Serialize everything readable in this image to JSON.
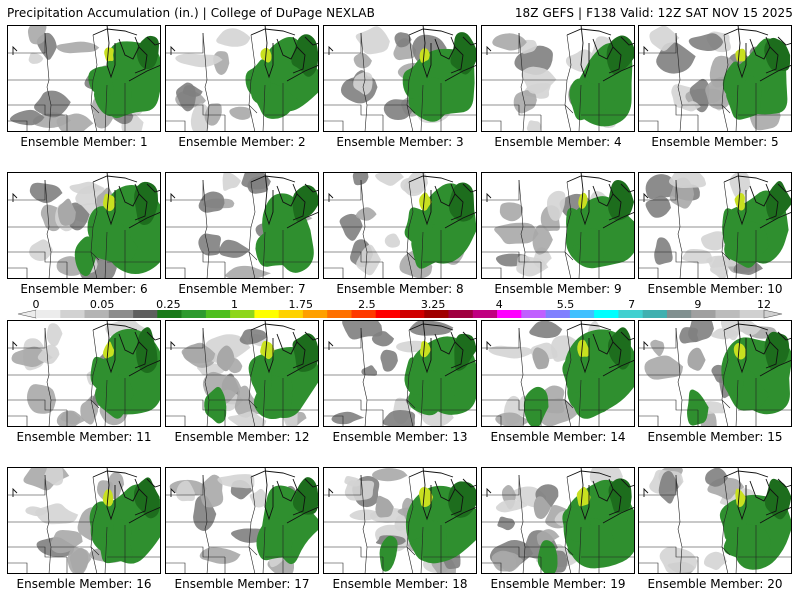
{
  "header": {
    "left": "Precipitation Accumulation (in.) | College of DuPage NEXLAB",
    "right": "18Z GEFS | F138 Valid: 12Z SAT NOV 15 2025"
  },
  "member_prefix": "Ensemble Member:",
  "members": [
    {
      "number": "1",
      "precip_level": 2
    },
    {
      "number": "2",
      "precip_level": 2
    },
    {
      "number": "3",
      "precip_level": 2
    },
    {
      "number": "4",
      "precip_level": 1
    },
    {
      "number": "5",
      "precip_level": 2
    },
    {
      "number": "6",
      "precip_level": 3
    },
    {
      "number": "7",
      "precip_level": 1
    },
    {
      "number": "8",
      "precip_level": 2
    },
    {
      "number": "9",
      "precip_level": 2
    },
    {
      "number": "10",
      "precip_level": 2
    },
    {
      "number": "11",
      "precip_level": 2
    },
    {
      "number": "12",
      "precip_level": 3
    },
    {
      "number": "13",
      "precip_level": 2
    },
    {
      "number": "14",
      "precip_level": 3
    },
    {
      "number": "15",
      "precip_level": 3
    },
    {
      "number": "16",
      "precip_level": 2
    },
    {
      "number": "17",
      "precip_level": 1
    },
    {
      "number": "18",
      "precip_level": 3
    },
    {
      "number": "19",
      "precip_level": 3
    },
    {
      "number": "20",
      "precip_level": 2
    }
  ],
  "colorbar": {
    "labels": [
      "0",
      "0.05",
      "0.25",
      "1",
      "1.75",
      "2.5",
      "3.25",
      "4",
      "5.5",
      "7",
      "9",
      "12"
    ],
    "colors": [
      "#ececec",
      "#d2d2d2",
      "#b4b4b4",
      "#8c8c8c",
      "#5f5f5f",
      "#1a7a1a",
      "#2e9a2e",
      "#4fbf1f",
      "#8fd61a",
      "#ffff00",
      "#ffd200",
      "#ffa000",
      "#ff7000",
      "#ff3a00",
      "#ff0000",
      "#d00000",
      "#a00000",
      "#a00040",
      "#c00080",
      "#ff00ff",
      "#c060ff",
      "#8080ff",
      "#40c0ff",
      "#00ffff",
      "#40d0d0",
      "#40b0b0",
      "#809090",
      "#a0a0a0",
      "#bcbcbc",
      "#d0d0d0"
    ]
  },
  "palette": {
    "light_gray": "#d4d4d4",
    "gray": "#a8a8a8",
    "dark_gray": "#808080",
    "green": "#2f8f2f",
    "dark_green": "#1d6d1d",
    "yellow_green": "#c8e020",
    "lake": "#3c9a3c"
  }
}
